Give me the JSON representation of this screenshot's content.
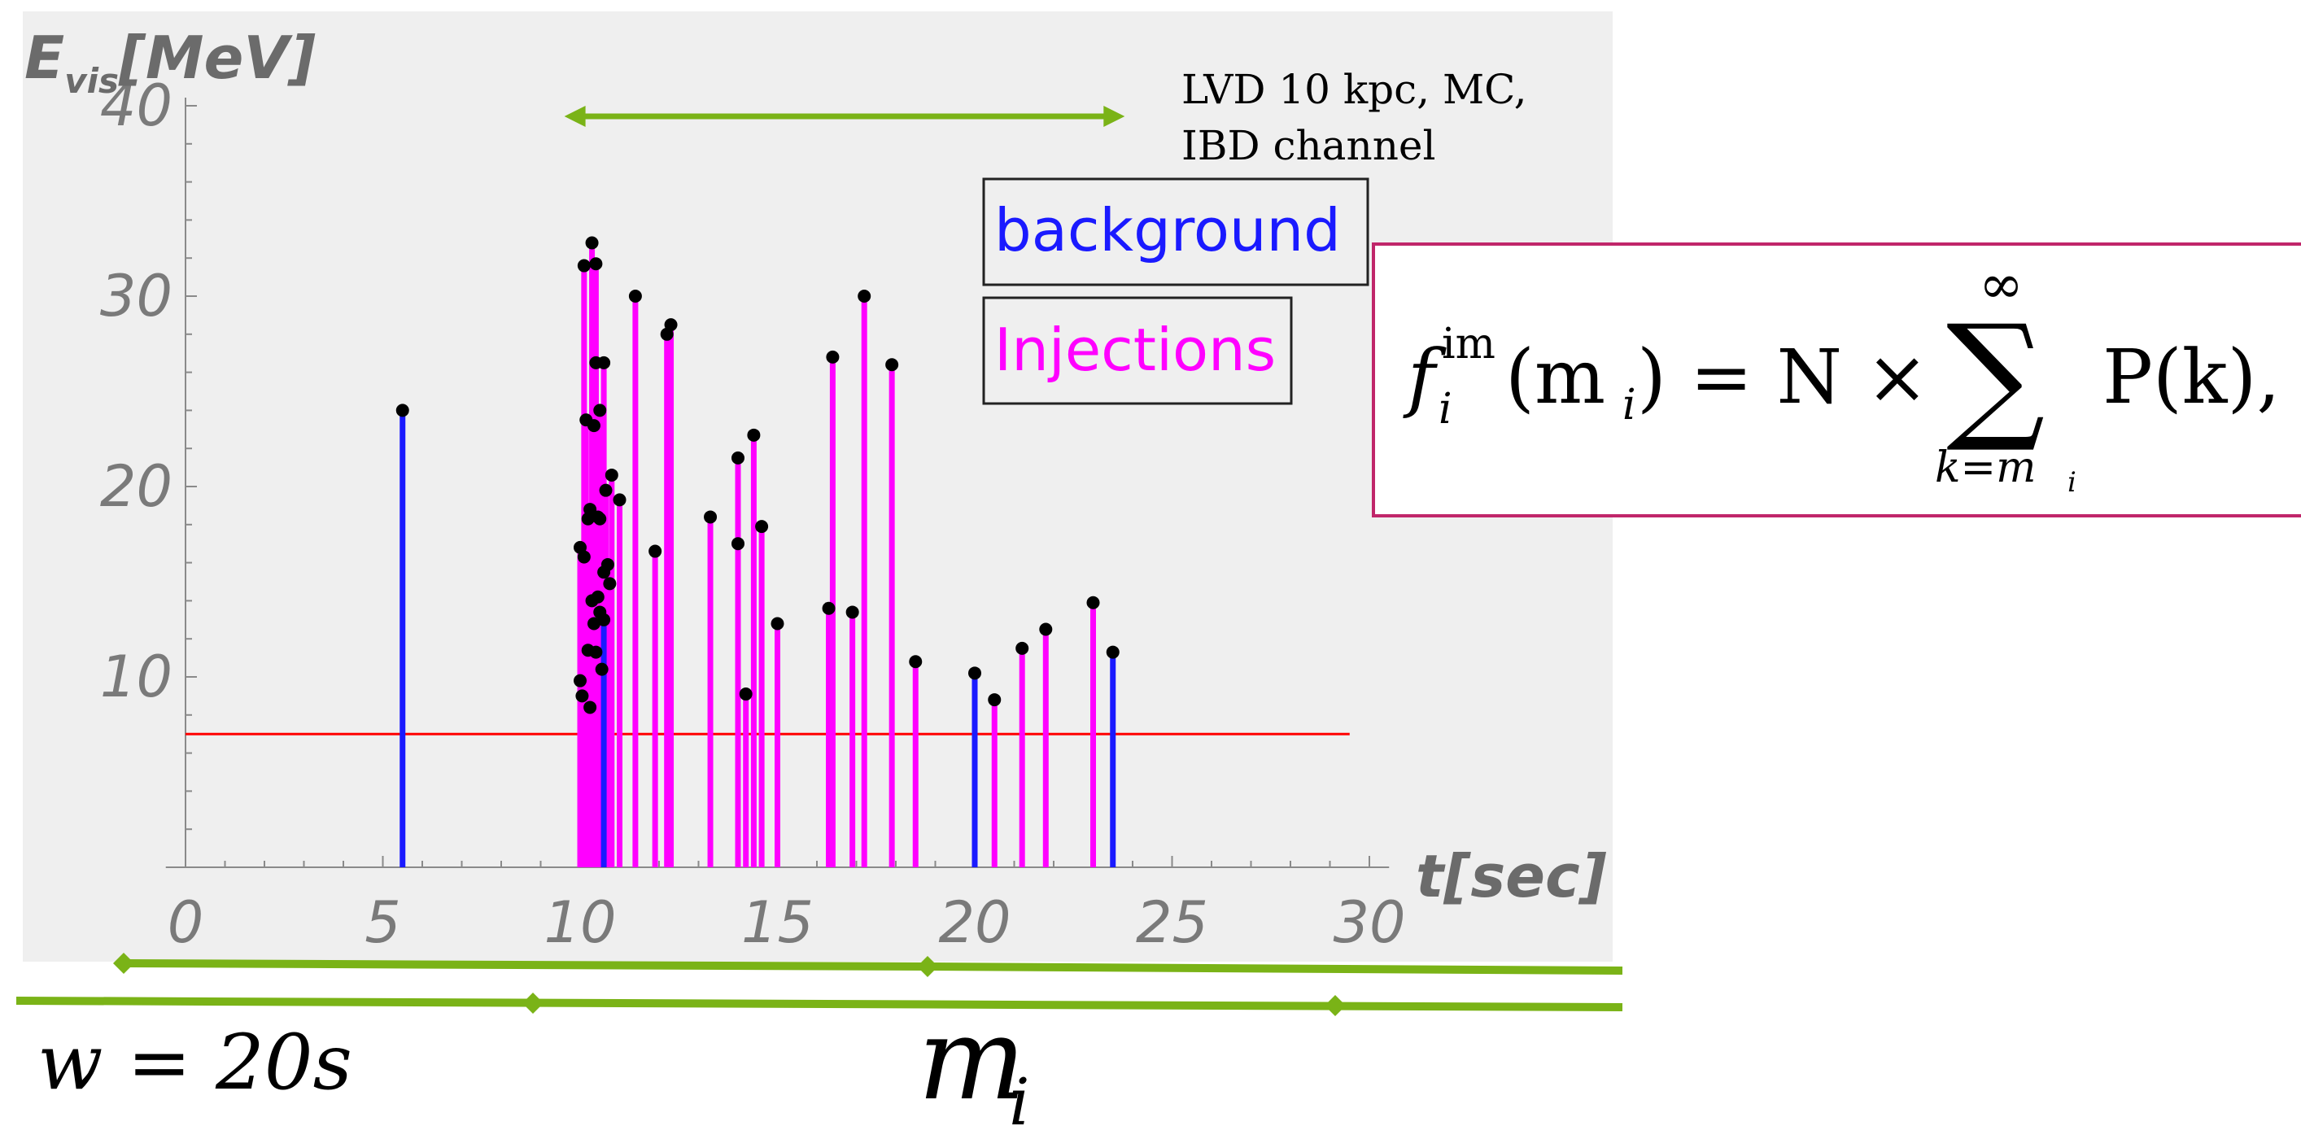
{
  "chart_data": {
    "type": "stem",
    "title": "",
    "ylabel": "Evis[MeV]",
    "xlabel": "t[sec]",
    "xlim": [
      -0.5,
      30.5
    ],
    "ylim": [
      0,
      40
    ],
    "x_ticks": [
      0,
      5,
      10,
      15,
      20,
      25,
      30
    ],
    "y_ticks": [
      10,
      20,
      30,
      40
    ],
    "threshold": 7,
    "threshold_color": "#ff0000",
    "annotation": [
      "LVD  10 kpc, MC,",
      "IBD channel"
    ],
    "window_arrow_x": [
      9.6,
      23.8
    ],
    "series": [
      {
        "name": "background",
        "color": "#1a1aff",
        "points": [
          [
            5.5,
            24.0
          ],
          [
            10.6,
            13.0
          ],
          [
            20.0,
            10.2
          ],
          [
            23.5,
            11.3
          ]
        ]
      },
      {
        "name": "Injections",
        "color": "#ff00ff",
        "points": [
          [
            10.0,
            9.8
          ],
          [
            10.0,
            16.8
          ],
          [
            10.05,
            9.0
          ],
          [
            10.1,
            16.3
          ],
          [
            10.1,
            31.6
          ],
          [
            10.15,
            23.5
          ],
          [
            10.2,
            18.3
          ],
          [
            10.2,
            11.4
          ],
          [
            10.25,
            18.8
          ],
          [
            10.25,
            8.4
          ],
          [
            10.3,
            32.8
          ],
          [
            10.3,
            14.0
          ],
          [
            10.35,
            23.2
          ],
          [
            10.35,
            12.8
          ],
          [
            10.4,
            26.5
          ],
          [
            10.4,
            11.3
          ],
          [
            10.4,
            31.7
          ],
          [
            10.45,
            18.4
          ],
          [
            10.45,
            14.2
          ],
          [
            10.5,
            24.0
          ],
          [
            10.5,
            18.3
          ],
          [
            10.5,
            13.4
          ],
          [
            10.55,
            10.4
          ],
          [
            10.6,
            26.5
          ],
          [
            10.6,
            15.5
          ],
          [
            10.65,
            19.8
          ],
          [
            10.7,
            15.9
          ],
          [
            10.75,
            14.9
          ],
          [
            10.8,
            20.6
          ],
          [
            11.0,
            19.3
          ],
          [
            11.4,
            30.0
          ],
          [
            11.9,
            16.6
          ],
          [
            12.2,
            28.0
          ],
          [
            12.3,
            28.5
          ],
          [
            13.3,
            18.4
          ],
          [
            14.0,
            21.5
          ],
          [
            14.0,
            17.0
          ],
          [
            14.2,
            9.1
          ],
          [
            14.4,
            22.7
          ],
          [
            14.6,
            17.9
          ],
          [
            15.0,
            12.8
          ],
          [
            16.3,
            13.6
          ],
          [
            16.4,
            26.8
          ],
          [
            16.9,
            13.4
          ],
          [
            17.2,
            30.0
          ],
          [
            17.9,
            26.4
          ],
          [
            18.5,
            10.8
          ],
          [
            20.5,
            8.8
          ],
          [
            21.2,
            11.5
          ],
          [
            21.8,
            12.5
          ],
          [
            23.0,
            13.9
          ]
        ]
      }
    ]
  },
  "axes": {
    "y_title_main": "E",
    "y_title_sub": "vis",
    "y_title_unit": "[MeV]",
    "x_title": "t[sec]"
  },
  "legend": {
    "background": "background",
    "injections": "Injections",
    "background_color": "#1a1aff",
    "injections_color": "#ff00ff"
  },
  "formula": {
    "f": "f",
    "sup": "im",
    "sub_i": "i",
    "arg": "(m",
    "arg_sub": "i",
    "arg_close": ") = N ×",
    "sum_top": "∞",
    "sigma": "∑",
    "sum_bottom": "k=m",
    "sum_bottom_sub": "i",
    "term": "P(k),"
  },
  "window_label": "w = 20s",
  "mi_label_main": "m",
  "mi_label_sub": "i",
  "green_color": "#7ab317"
}
